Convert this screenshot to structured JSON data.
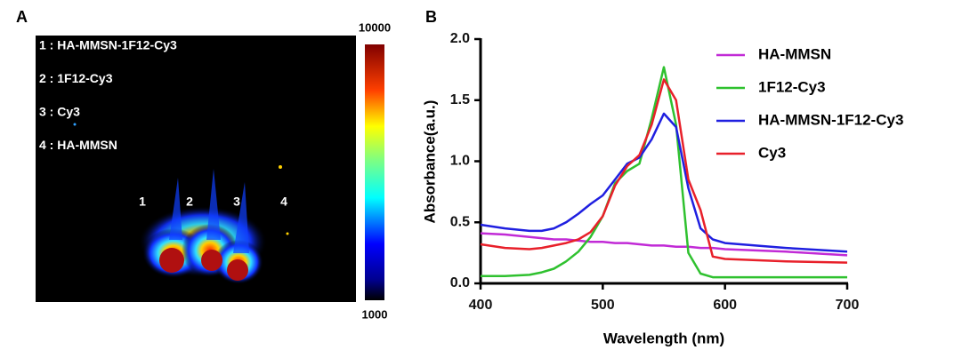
{
  "panel_a": {
    "label": "A",
    "legend": [
      "1 : HA-MMSN-1F12-Cy3",
      "2 : 1F12-Cy3",
      "3 : Cy3",
      "4 : HA-MMSN"
    ],
    "lanes": [
      "1",
      "2",
      "3",
      "4"
    ],
    "colorbar": {
      "max": 10000,
      "min": 1000
    }
  },
  "chart_data": {
    "type": "line",
    "label": "B",
    "xlabel": "Wavelength (nm)",
    "ylabel": "Absorbance(a.u.)",
    "x": [
      400,
      420,
      440,
      450,
      460,
      470,
      480,
      490,
      500,
      510,
      520,
      530,
      540,
      550,
      560,
      570,
      580,
      590,
      600,
      650,
      700
    ],
    "series": [
      {
        "name": "HA-MMSN",
        "color": "#c12ad6",
        "values": [
          0.41,
          0.4,
          0.38,
          0.37,
          0.36,
          0.36,
          0.35,
          0.34,
          0.34,
          0.33,
          0.33,
          0.32,
          0.31,
          0.31,
          0.3,
          0.3,
          0.29,
          0.29,
          0.28,
          0.26,
          0.23
        ]
      },
      {
        "name": "1F12-Cy3",
        "color": "#2fc12f",
        "values": [
          0.06,
          0.06,
          0.07,
          0.09,
          0.12,
          0.18,
          0.26,
          0.38,
          0.55,
          0.82,
          0.92,
          0.98,
          1.35,
          1.77,
          1.3,
          0.25,
          0.08,
          0.05,
          0.05,
          0.05,
          0.05
        ]
      },
      {
        "name": "HA-MMSN-1F12-Cy3",
        "color": "#1f1fe0",
        "values": [
          0.48,
          0.45,
          0.43,
          0.43,
          0.45,
          0.5,
          0.57,
          0.65,
          0.72,
          0.85,
          0.98,
          1.03,
          1.18,
          1.39,
          1.28,
          0.78,
          0.45,
          0.36,
          0.33,
          0.29,
          0.26
        ]
      },
      {
        "name": "Cy3",
        "color": "#e8202a",
        "values": [
          0.32,
          0.29,
          0.28,
          0.29,
          0.31,
          0.33,
          0.36,
          0.42,
          0.55,
          0.8,
          0.96,
          1.05,
          1.3,
          1.67,
          1.5,
          0.85,
          0.6,
          0.22,
          0.2,
          0.18,
          0.17
        ]
      }
    ],
    "xlim": [
      400,
      700
    ],
    "xticks": [
      400,
      500,
      600,
      700
    ],
    "ylim": [
      0,
      2.0
    ],
    "yticks": [
      {
        "value": 0,
        "label": "0.0"
      },
      {
        "value": 0.5,
        "label": "0.5"
      },
      {
        "value": 1,
        "label": "1.0"
      },
      {
        "value": 1.5,
        "label": "1.5"
      },
      {
        "value": 2,
        "label": "2.0"
      }
    ]
  }
}
